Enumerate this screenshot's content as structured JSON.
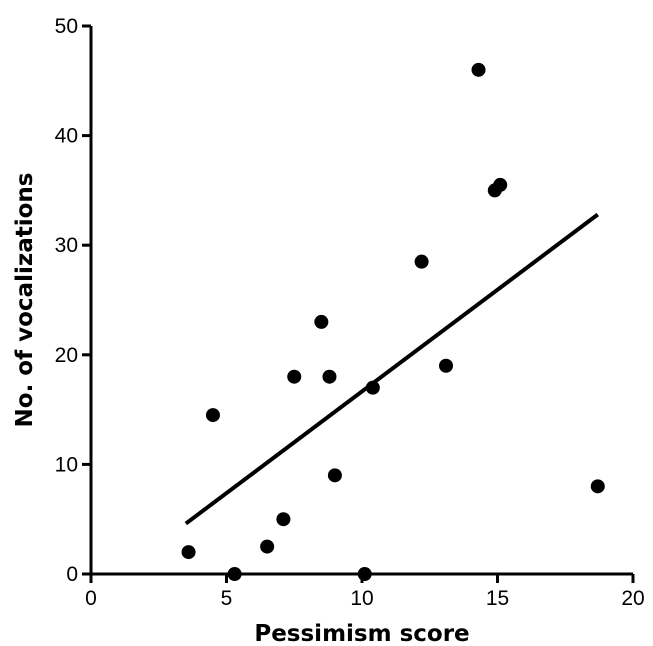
{
  "chart_data": {
    "type": "scatter",
    "title": "",
    "xlabel": "Pessimism score",
    "ylabel": "No. of vocalizations",
    "xlim": [
      0,
      20
    ],
    "ylim": [
      0,
      50
    ],
    "x_ticks": [
      0,
      5,
      10,
      15,
      20
    ],
    "y_ticks": [
      0,
      10,
      20,
      30,
      40,
      50
    ],
    "x_tick_labels": [
      "0",
      "5",
      "10",
      "15",
      "20"
    ],
    "y_tick_labels": [
      "0",
      "10",
      "20",
      "30",
      "40",
      "50"
    ],
    "grid": false,
    "legend": "none",
    "colors": {
      "points": "#000000",
      "trend_line": "#000000",
      "axes": "#000000"
    },
    "points": [
      {
        "x": 3.6,
        "y": 2
      },
      {
        "x": 4.5,
        "y": 14.5
      },
      {
        "x": 5.3,
        "y": 0
      },
      {
        "x": 6.5,
        "y": 2.5
      },
      {
        "x": 7.1,
        "y": 5
      },
      {
        "x": 7.5,
        "y": 18
      },
      {
        "x": 8.5,
        "y": 23
      },
      {
        "x": 8.8,
        "y": 18
      },
      {
        "x": 9.0,
        "y": 9
      },
      {
        "x": 10.1,
        "y": 0
      },
      {
        "x": 10.4,
        "y": 17
      },
      {
        "x": 12.2,
        "y": 28.5
      },
      {
        "x": 13.1,
        "y": 19
      },
      {
        "x": 14.3,
        "y": 46
      },
      {
        "x": 14.9,
        "y": 35
      },
      {
        "x": 15.1,
        "y": 35.5
      },
      {
        "x": 18.7,
        "y": 8
      }
    ],
    "trend_line": {
      "x": [
        3.5,
        18.7
      ],
      "y": [
        4.6,
        32.8
      ]
    }
  }
}
